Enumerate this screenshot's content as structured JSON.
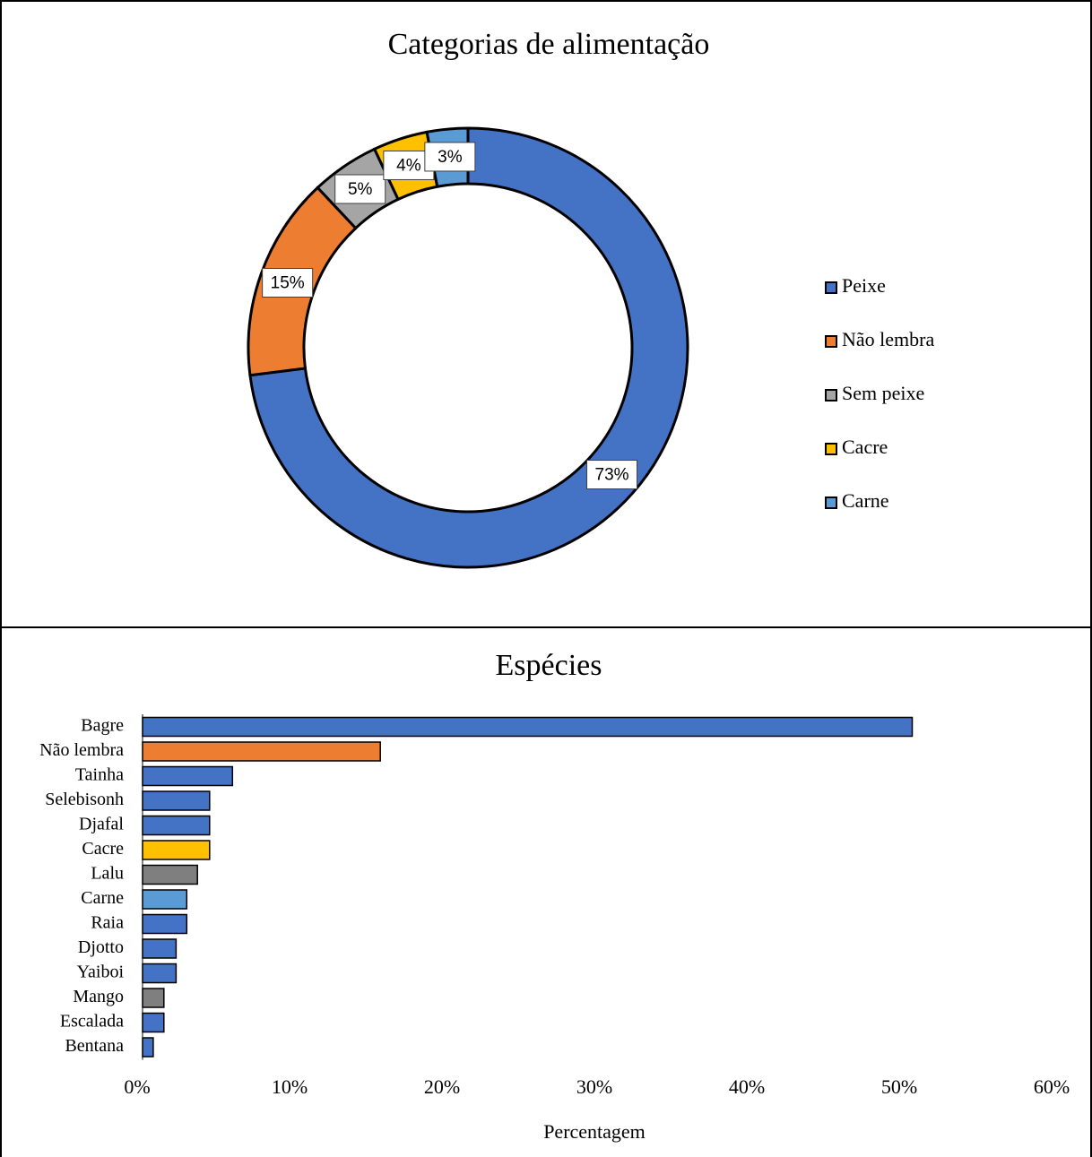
{
  "chart_data": [
    {
      "type": "doughnut",
      "title": "Categorias de alimentação",
      "categories": [
        "Peixe",
        "Não lembra",
        "Sem peixe",
        "Cacre",
        "Carne"
      ],
      "values": [
        73,
        15,
        5,
        4,
        3
      ],
      "value_labels": [
        "73%",
        "15%",
        "5%",
        "4%",
        "3%"
      ],
      "colors": [
        "#4472c4",
        "#ed7d31",
        "#a5a5a5",
        "#ffc000",
        "#5b9bd5"
      ],
      "legend": "right"
    },
    {
      "type": "bar",
      "title": "Espécies",
      "x_label": "Percentagem",
      "orientation": "horizontal",
      "categories": [
        "Bagre",
        "Não lembra",
        "Tainha",
        "Selebisonh",
        "Djafal",
        "Cacre",
        "Lalu",
        "Carne",
        "Raia",
        "Djotto",
        "Yaiboi",
        "Mango",
        "Escalada",
        "Bentana"
      ],
      "values": [
        50.5,
        15.6,
        5.9,
        4.4,
        4.4,
        4.4,
        3.6,
        2.9,
        2.9,
        2.2,
        2.2,
        1.4,
        1.4,
        0.7
      ],
      "colors": [
        "#4472c4",
        "#ed7d31",
        "#4472c4",
        "#4472c4",
        "#4472c4",
        "#ffc000",
        "#7f7f7f",
        "#5b9bd5",
        "#4472c4",
        "#4472c4",
        "#4472c4",
        "#7f7f7f",
        "#4472c4",
        "#4472c4"
      ],
      "xlim": [
        0,
        60
      ],
      "xticks": [
        {
          "value": 0,
          "label": "0%"
        },
        {
          "value": 10,
          "label": "10%"
        },
        {
          "value": 20,
          "label": "20%"
        },
        {
          "value": 30,
          "label": "30%"
        },
        {
          "value": 40,
          "label": "40%"
        },
        {
          "value": 50,
          "label": "50%"
        },
        {
          "value": 60,
          "label": "60%"
        }
      ],
      "grid": false
    }
  ]
}
